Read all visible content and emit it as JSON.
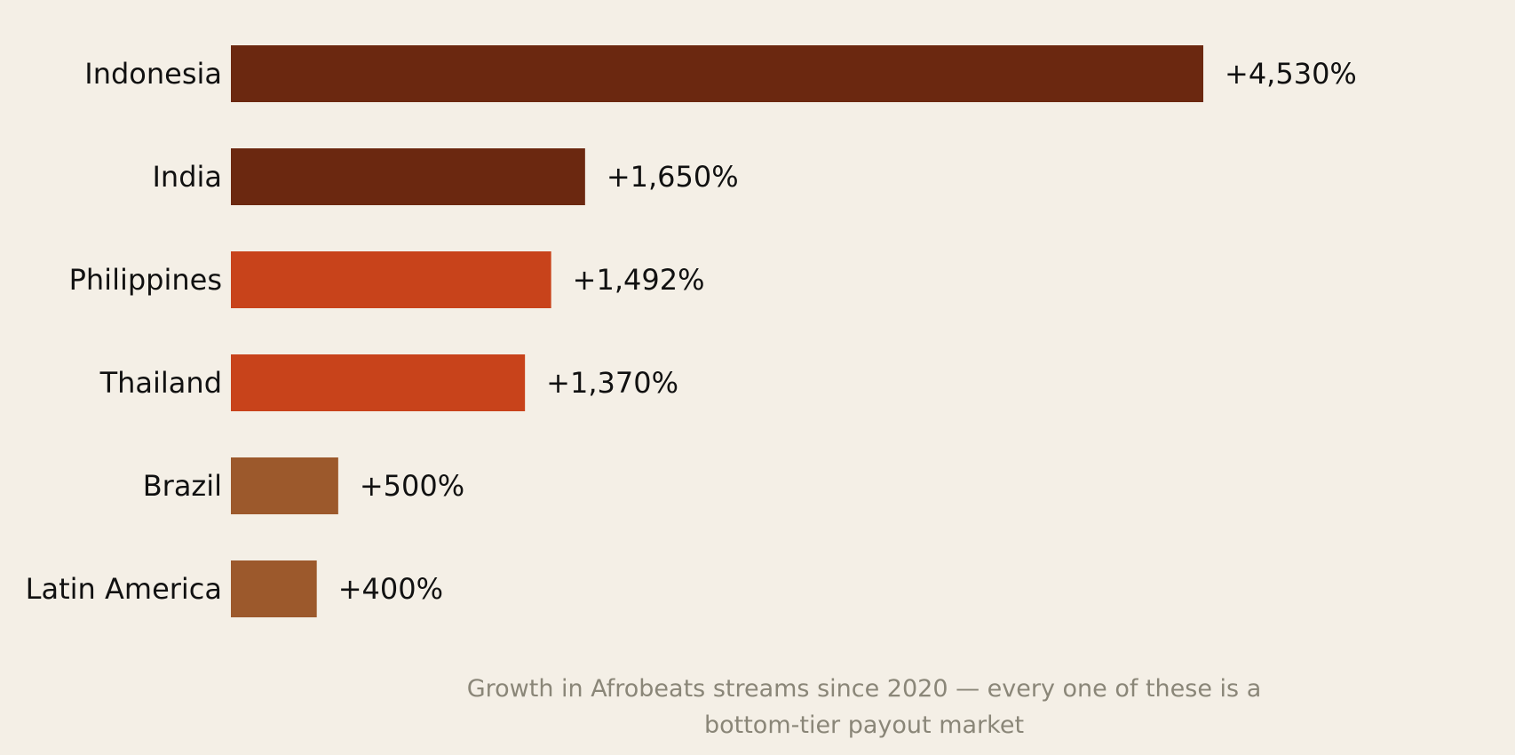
{
  "chart_data": {
    "type": "bar",
    "orientation": "horizontal",
    "categories": [
      "Indonesia",
      "India",
      "Philippines",
      "Thailand",
      "Brazil",
      "Latin America"
    ],
    "values": [
      4530,
      1650,
      1492,
      1370,
      500,
      400
    ],
    "value_labels": [
      "+4,530%",
      "+1,650%",
      "+1,492%",
      "+1,370%",
      "+500%",
      "+400%"
    ],
    "bar_colors": [
      "#6b2810",
      "#6b2810",
      "#c8431b",
      "#c8431b",
      "#9c592c",
      "#9c592c"
    ],
    "xlim": [
      0,
      4530
    ],
    "grid": false,
    "legend": "none",
    "caption_lines": [
      "Growth in Afrobeats streams since 2020 — every one of these is a",
      "bottom-tier payout market"
    ]
  },
  "colors": {
    "background": "#f4efe6",
    "text": "#111111",
    "caption": "#8a8678"
  }
}
